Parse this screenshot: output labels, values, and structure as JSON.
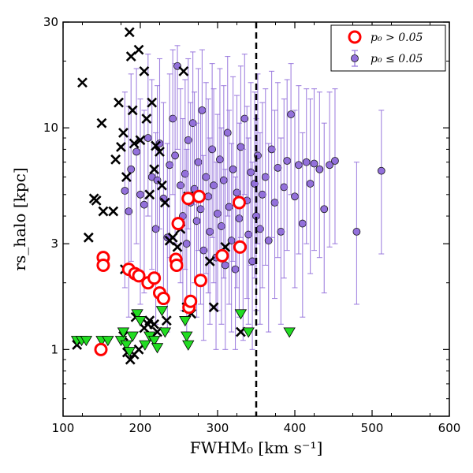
{
  "chart_data": {
    "type": "scatter",
    "xlabel": "FWHM₀ [km s⁻¹]",
    "ylabel": "rs_halo [kpc]",
    "xlim": [
      100,
      600
    ],
    "ylim": [
      0.5,
      30
    ],
    "yscale": "log",
    "x_ticks": [
      100,
      200,
      300,
      400,
      500,
      600
    ],
    "x_tick_labels": [
      "100",
      "200",
      "300",
      "400",
      "500",
      "600"
    ],
    "y_ticks": [
      1,
      3,
      10,
      30
    ],
    "y_tick_labels": [
      "1",
      "3",
      "10",
      "30"
    ],
    "grid": false,
    "legend_position": "top-right",
    "vline": {
      "x": 350,
      "style": "dashed"
    },
    "colors": {
      "red_circle": "#ff0000",
      "purple": "#9370db",
      "purple_edge": "#1a1a1a",
      "errorbar": "#9370db",
      "cross": "#000000",
      "triangle": "#22dd22"
    },
    "legend": [
      {
        "label": "p₀ > 0.05",
        "marker": "open-circle"
      },
      {
        "label": "p₀ ≤ 0.05",
        "marker": "filled-circle-errorbar"
      }
    ],
    "series": [
      {
        "name": "p₀ > 0.05",
        "marker": "open-circle",
        "points": [
          [
            149,
            1.0
          ],
          [
            152,
            2.6
          ],
          [
            152,
            2.4
          ],
          [
            185,
            2.3
          ],
          [
            193,
            2.2
          ],
          [
            198,
            2.15
          ],
          [
            210,
            2.0
          ],
          [
            218,
            2.1
          ],
          [
            225,
            1.8
          ],
          [
            230,
            1.7
          ],
          [
            246,
            2.55
          ],
          [
            247,
            2.4
          ],
          [
            249,
            3.7
          ],
          [
            262,
            4.8
          ],
          [
            263,
            1.55
          ],
          [
            265,
            1.65
          ],
          [
            276,
            4.9
          ],
          [
            278,
            2.05
          ],
          [
            306,
            2.65
          ],
          [
            328,
            4.6
          ],
          [
            329,
            2.9
          ]
        ]
      },
      {
        "name": "p₀ ≤ 0.05",
        "marker": "filled-circle-errorbar",
        "points": [
          [
            180,
            5.2,
            1.9,
            14.5
          ],
          [
            185,
            4.2,
            1.4,
            12.5
          ],
          [
            188,
            6.5,
            2.5,
            17.5
          ],
          [
            195,
            7.8,
            3.0,
            18.5
          ],
          [
            200,
            5.0,
            1.6,
            13.5
          ],
          [
            205,
            4.5,
            1.8,
            12.0
          ],
          [
            210,
            9.0,
            4.0,
            21.5
          ],
          [
            215,
            6.0,
            2.3,
            16.5
          ],
          [
            220,
            3.5,
            1.3,
            9.5
          ],
          [
            222,
            5.8,
            2.2,
            15.5
          ],
          [
            225,
            8.5,
            3.5,
            20.5
          ],
          [
            230,
            4.8,
            1.8,
            13.0
          ],
          [
            235,
            3.2,
            1.2,
            8.5
          ],
          [
            238,
            6.8,
            2.6,
            17.5
          ],
          [
            242,
            11.0,
            5.0,
            22.5
          ],
          [
            245,
            7.5,
            3.0,
            19.5
          ],
          [
            248,
            19.0,
            8.0,
            23.5
          ],
          [
            252,
            5.5,
            2.0,
            15.0
          ],
          [
            255,
            4.0,
            1.5,
            11.0
          ],
          [
            258,
            6.2,
            2.3,
            16.5
          ],
          [
            260,
            3.0,
            1.2,
            8.0
          ],
          [
            262,
            8.8,
            3.5,
            20.5
          ],
          [
            265,
            4.6,
            1.7,
            13.0
          ],
          [
            268,
            10.5,
            4.5,
            22.0
          ],
          [
            270,
            5.3,
            2.0,
            14.5
          ],
          [
            273,
            3.8,
            1.4,
            10.5
          ],
          [
            275,
            7.0,
            2.8,
            18.5
          ],
          [
            278,
            4.3,
            1.6,
            12.0
          ],
          [
            280,
            12.0,
            5.0,
            22.5
          ],
          [
            282,
            2.8,
            1.1,
            7.5
          ],
          [
            285,
            6.0,
            2.2,
            16.0
          ],
          [
            288,
            4.9,
            1.8,
            13.5
          ],
          [
            290,
            3.4,
            1.3,
            9.0
          ],
          [
            293,
            8.0,
            3.2,
            19.5
          ],
          [
            295,
            5.5,
            2.0,
            15.0
          ],
          [
            298,
            2.6,
            1.0,
            7.0
          ],
          [
            300,
            4.1,
            1.5,
            11.5
          ],
          [
            303,
            7.2,
            2.8,
            18.5
          ],
          [
            305,
            3.6,
            1.3,
            10.0
          ],
          [
            308,
            5.8,
            2.1,
            15.5
          ],
          [
            310,
            2.4,
            1.0,
            6.5
          ],
          [
            313,
            9.5,
            4.0,
            21.0
          ],
          [
            315,
            4.4,
            1.6,
            12.0
          ],
          [
            318,
            3.1,
            1.2,
            8.5
          ],
          [
            320,
            6.5,
            2.5,
            17.0
          ],
          [
            323,
            2.3,
            1.0,
            6.0
          ],
          [
            325,
            5.1,
            1.9,
            14.0
          ],
          [
            328,
            3.9,
            1.4,
            10.5
          ],
          [
            330,
            8.2,
            3.2,
            19.0
          ],
          [
            333,
            2.9,
            1.1,
            8.0
          ],
          [
            335,
            11.0,
            5.0,
            21.5
          ],
          [
            338,
            4.7,
            1.7,
            12.5
          ],
          [
            340,
            3.3,
            1.3,
            9.0
          ],
          [
            343,
            6.3,
            2.4,
            16.0
          ],
          [
            345,
            2.5,
            1.0,
            7.0
          ],
          [
            348,
            5.6,
            2.1,
            14.5
          ],
          [
            350,
            4.0,
            1.5,
            11.0
          ],
          [
            352,
            7.5,
            3.0,
            17.5
          ],
          [
            355,
            3.5,
            1.3,
            9.5
          ],
          [
            358,
            5.0,
            1.9,
            13.0
          ],
          [
            362,
            6.0,
            2.4,
            15.0
          ],
          [
            366,
            3.1,
            1.2,
            8.5
          ],
          [
            370,
            8.0,
            3.2,
            18.0
          ],
          [
            374,
            4.6,
            1.7,
            12.0
          ],
          [
            378,
            6.6,
            2.6,
            16.0
          ],
          [
            382,
            3.4,
            1.3,
            9.0
          ],
          [
            386,
            5.4,
            2.1,
            13.5
          ],
          [
            390,
            7.1,
            2.8,
            16.5
          ],
          [
            395,
            11.5,
            5.0,
            19.5
          ],
          [
            400,
            4.9,
            1.9,
            12.0
          ],
          [
            405,
            6.8,
            2.7,
            15.5
          ],
          [
            410,
            3.7,
            1.4,
            9.5
          ],
          [
            415,
            7.0,
            3.0,
            15.0
          ],
          [
            420,
            5.6,
            2.2,
            13.5
          ],
          [
            425,
            6.9,
            2.8,
            15.0
          ],
          [
            432,
            6.5,
            2.6,
            14.5
          ],
          [
            438,
            4.3,
            1.8,
            10.5
          ],
          [
            445,
            6.8,
            2.9,
            14.5
          ],
          [
            452,
            7.1,
            3.0,
            15.0
          ],
          [
            480,
            3.4,
            1.6,
            7.0
          ],
          [
            512,
            6.4,
            2.7,
            12.0
          ]
        ]
      },
      {
        "name": "",
        "marker": "x",
        "points": [
          [
            118,
            1.05
          ],
          [
            125,
            16.0
          ],
          [
            133,
            3.2
          ],
          [
            140,
            4.8
          ],
          [
            143,
            4.7
          ],
          [
            150,
            10.5
          ],
          [
            152,
            4.2
          ],
          [
            165,
            4.2
          ],
          [
            168,
            7.2
          ],
          [
            172,
            13.0
          ],
          [
            175,
            8.2
          ],
          [
            178,
            9.5
          ],
          [
            180,
            2.3
          ],
          [
            182,
            6.0
          ],
          [
            186,
            27.0
          ],
          [
            188,
            21.0
          ],
          [
            190,
            12.0
          ],
          [
            192,
            8.5
          ],
          [
            194,
            1.4
          ],
          [
            198,
            22.5
          ],
          [
            200,
            8.8
          ],
          [
            205,
            18.0
          ],
          [
            208,
            11.0
          ],
          [
            210,
            1.3
          ],
          [
            212,
            5.0
          ],
          [
            215,
            13.0
          ],
          [
            218,
            6.5
          ],
          [
            220,
            8.3
          ],
          [
            225,
            7.8
          ],
          [
            228,
            5.5
          ],
          [
            232,
            4.6
          ],
          [
            234,
            1.35
          ],
          [
            238,
            3.1
          ],
          [
            242,
            3.2
          ],
          [
            248,
            2.9
          ],
          [
            252,
            3.5
          ],
          [
            256,
            18.0
          ],
          [
            260,
            1.55
          ],
          [
            262,
            4.9
          ],
          [
            266,
            1.45
          ],
          [
            290,
            2.5
          ],
          [
            295,
            1.55
          ],
          [
            310,
            2.9
          ],
          [
            330,
            1.2
          ],
          [
            178,
            1.15
          ],
          [
            183,
            0.97
          ],
          [
            187,
            0.9
          ],
          [
            192,
            0.95
          ],
          [
            198,
            1.0
          ],
          [
            205,
            1.25
          ],
          [
            212,
            1.35
          ],
          [
            218,
            1.3
          ],
          [
            222,
            1.2
          ]
        ]
      },
      {
        "name": "",
        "marker": "triangle-down",
        "points": [
          [
            118,
            1.1
          ],
          [
            124,
            1.1
          ],
          [
            130,
            1.1
          ],
          [
            150,
            1.1
          ],
          [
            158,
            1.1
          ],
          [
            175,
            1.1
          ],
          [
            178,
            1.2
          ],
          [
            182,
            1.05
          ],
          [
            186,
            0.98
          ],
          [
            190,
            1.15
          ],
          [
            196,
            1.45
          ],
          [
            200,
            1.35
          ],
          [
            206,
            1.05
          ],
          [
            212,
            1.15
          ],
          [
            218,
            1.1
          ],
          [
            222,
            1.02
          ],
          [
            228,
            1.5
          ],
          [
            232,
            1.2
          ],
          [
            258,
            1.35
          ],
          [
            260,
            1.15
          ],
          [
            262,
            1.05
          ],
          [
            330,
            1.45
          ],
          [
            340,
            1.2
          ],
          [
            393,
            1.2
          ]
        ]
      }
    ]
  }
}
